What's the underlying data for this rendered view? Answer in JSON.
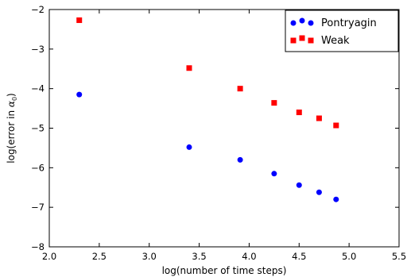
{
  "chart_data": {
    "type": "scatter",
    "xlabel": "log(number of time steps)",
    "ylabel_prefix": "log(error in ",
    "ylabel_symbol": "α",
    "ylabel_subscript": "0",
    "ylabel_suffix": ")",
    "xlim": [
      2.0,
      5.5
    ],
    "ylim": [
      -8,
      -2
    ],
    "xticks": [
      "2.0",
      "2.5",
      "3.0",
      "3.5",
      "4.0",
      "4.5",
      "5.0",
      "5.5"
    ],
    "yticks": [
      "−8",
      "−7",
      "−6",
      "−5",
      "−4",
      "−3",
      "−2"
    ],
    "grid": false,
    "legend_position": "top-right",
    "series": [
      {
        "name": "Pontryagin",
        "marker": "circle",
        "color": "#0000ff",
        "x": [
          2.3,
          3.4,
          3.91,
          4.25,
          4.5,
          4.7,
          4.87
        ],
        "y": [
          -4.15,
          -5.48,
          -5.8,
          -6.15,
          -6.44,
          -6.62,
          -6.8
        ]
      },
      {
        "name": "Weak",
        "marker": "square",
        "color": "#ff0000",
        "x": [
          2.3,
          3.4,
          3.91,
          4.25,
          4.5,
          4.7,
          4.87
        ],
        "y": [
          -2.27,
          -3.48,
          -4.0,
          -4.36,
          -4.6,
          -4.75,
          -4.93
        ]
      }
    ]
  }
}
